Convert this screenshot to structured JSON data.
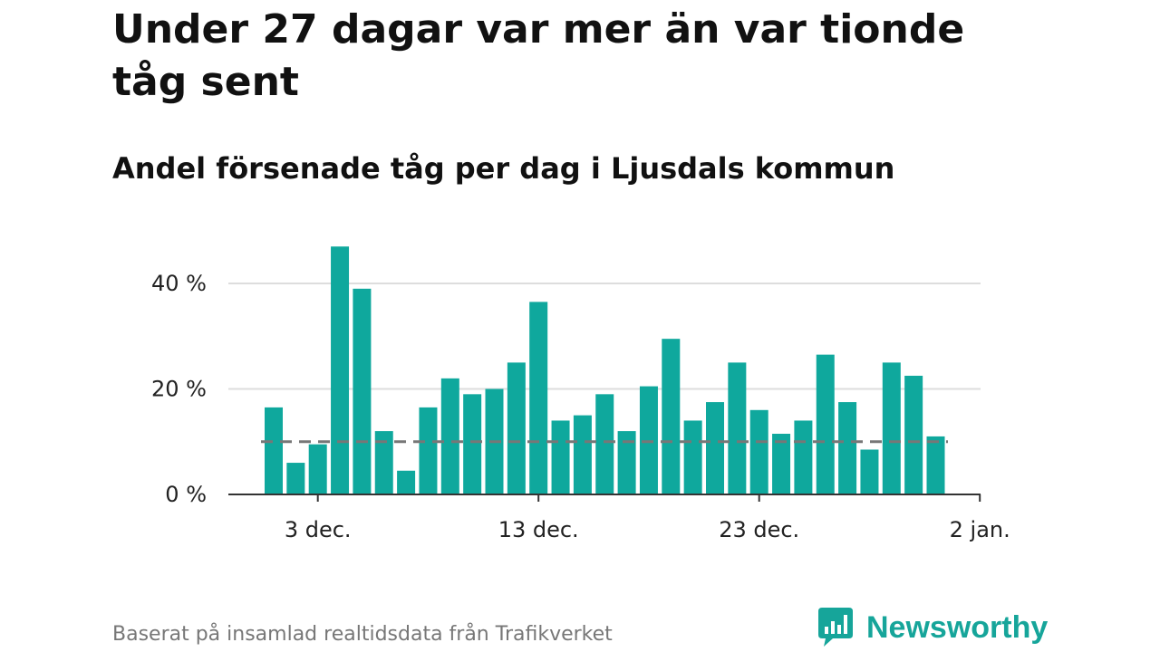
{
  "header": {
    "title": "Under 27 dagar var mer än var tionde tåg sent",
    "subtitle": "Andel försenade tåg per dag i Ljusdals kommun"
  },
  "footer": {
    "source": "Baserat på insamlad realtidsdata från Trafikverket",
    "brand": "Newsworthy"
  },
  "colors": {
    "bar": "#0fa89d",
    "brand": "#16a59a",
    "reference_line": "#777777",
    "grid": "#dddddd",
    "axis": "#333333"
  },
  "chart_data": {
    "type": "bar",
    "x_type": "date",
    "dates": [
      "2023-12-01",
      "2023-12-02",
      "2023-12-03",
      "2023-12-04",
      "2023-12-05",
      "2023-12-06",
      "2023-12-07",
      "2023-12-08",
      "2023-12-09",
      "2023-12-10",
      "2023-12-11",
      "2023-12-12",
      "2023-12-13",
      "2023-12-14",
      "2023-12-15",
      "2023-12-16",
      "2023-12-17",
      "2023-12-18",
      "2023-12-19",
      "2023-12-20",
      "2023-12-21",
      "2023-12-22",
      "2023-12-23",
      "2023-12-24",
      "2023-12-25",
      "2023-12-26",
      "2023-12-27",
      "2023-12-28",
      "2023-12-29",
      "2023-12-30",
      "2023-12-31"
    ],
    "values": [
      16.5,
      6,
      9.5,
      47,
      39,
      12,
      4.5,
      16.5,
      22,
      19,
      20,
      25,
      36.5,
      14,
      15,
      19,
      12,
      20.5,
      29.5,
      14,
      17.5,
      25,
      16,
      11.5,
      14,
      26.5,
      17.5,
      8.5,
      25,
      22.5,
      11
    ],
    "reference_line": 10,
    "ylim": [
      0,
      50
    ],
    "y_ticks": [
      0,
      20,
      40
    ],
    "y_tick_labels": [
      "0 %",
      "20 %",
      "40 %"
    ],
    "x_ticks": [
      {
        "date": "2023-12-03",
        "label": "3 dec."
      },
      {
        "date": "2023-12-13",
        "label": "13 dec."
      },
      {
        "date": "2023-12-23",
        "label": "23 dec."
      },
      {
        "date": "2024-01-02",
        "label": "2 jan."
      }
    ],
    "grid": true,
    "legend": "none"
  }
}
